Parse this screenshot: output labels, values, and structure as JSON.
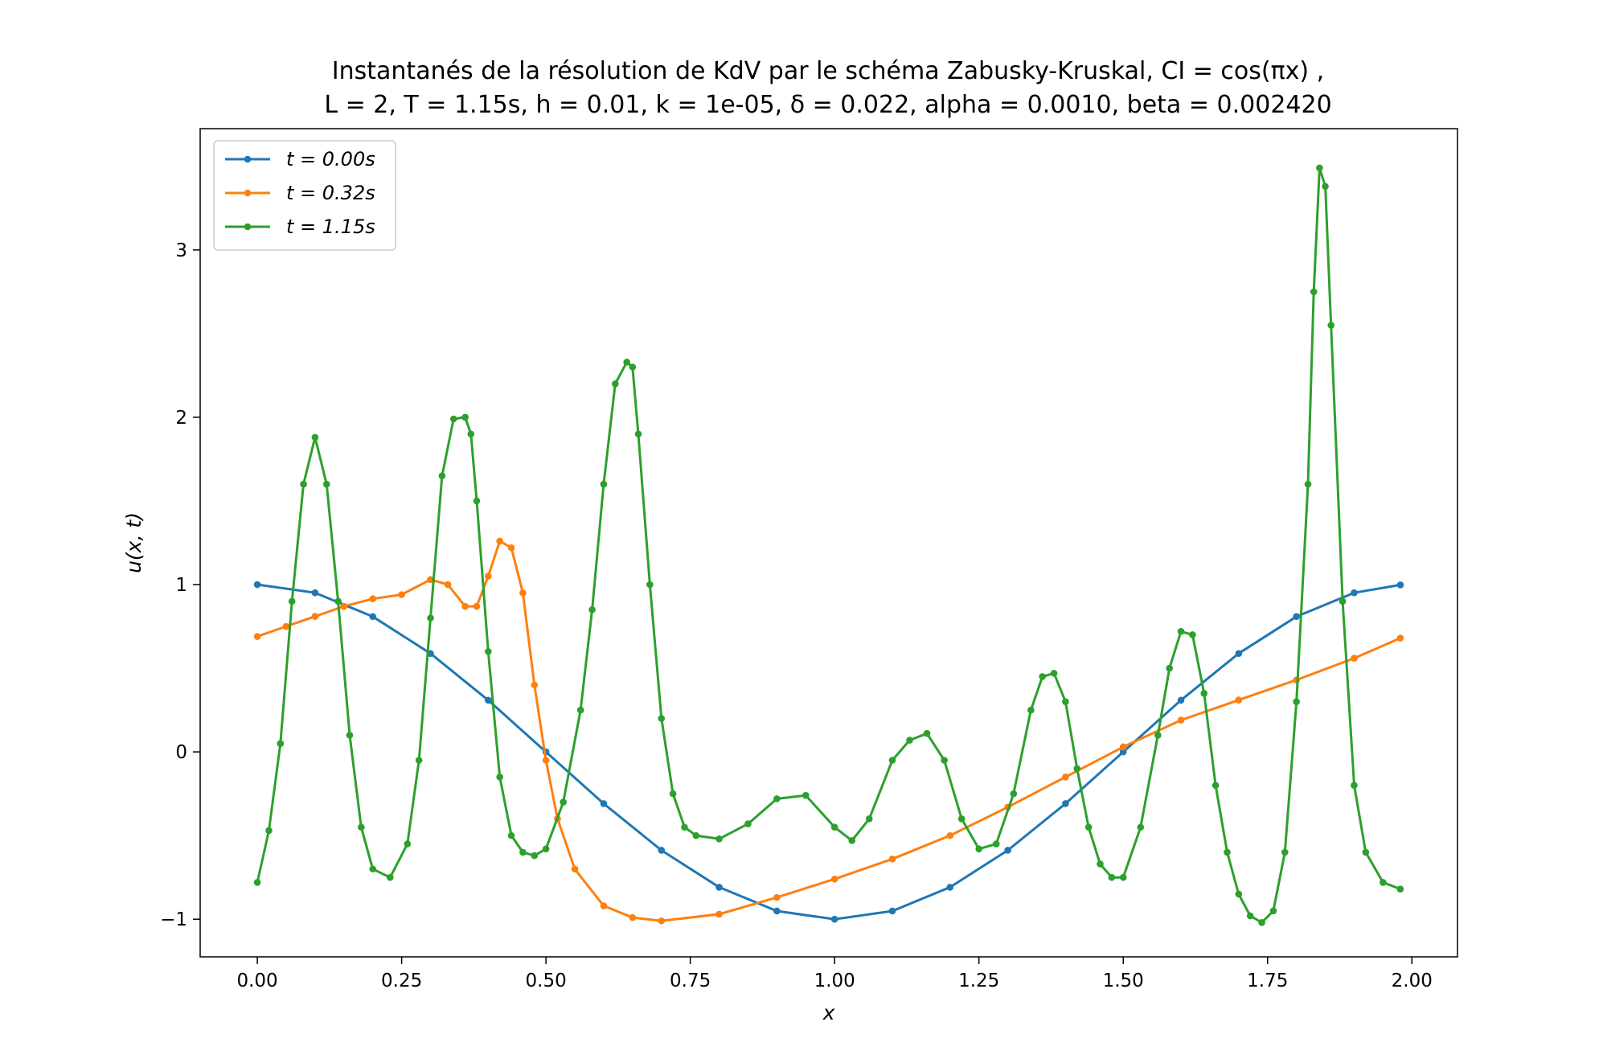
{
  "chart_data": {
    "type": "line",
    "title_line1": "Instantanés de la résolution de KdV par le schéma Zabusky-Kruskal, CI = cos(πx) ,",
    "title_line2": "L = 2, T = 1.15s, h = 0.01, k = 1e-05, δ = 0.022,  alpha = 0.0010, beta = 0.002420",
    "xlabel": "x",
    "ylabel": "u(x, t)",
    "xlim": [
      -0.099,
      2.079
    ],
    "ylim": [
      -1.225,
      3.725
    ],
    "xticks": [
      0.0,
      0.25,
      0.5,
      0.75,
      1.0,
      1.25,
      1.5,
      1.75,
      2.0
    ],
    "xtick_labels": [
      "0.00",
      "0.25",
      "0.50",
      "0.75",
      "1.00",
      "1.25",
      "1.50",
      "1.75",
      "2.00"
    ],
    "yticks": [
      -1,
      0,
      1,
      2,
      3
    ],
    "ytick_labels": [
      "−1",
      "0",
      "1",
      "2",
      "3"
    ],
    "grid": false,
    "legend_position": "top-left",
    "series": [
      {
        "name": "t = 0.00s",
        "color": "#1f77b4",
        "x": [
          0.0,
          0.1,
          0.2,
          0.3,
          0.4,
          0.5,
          0.6,
          0.7,
          0.8,
          0.9,
          1.0,
          1.1,
          1.2,
          1.3,
          1.4,
          1.5,
          1.6,
          1.7,
          1.8,
          1.9,
          1.98
        ],
        "y": [
          1.0,
          0.951,
          0.809,
          0.588,
          0.309,
          0.0,
          -0.309,
          -0.588,
          -0.809,
          -0.951,
          -1.0,
          -0.951,
          -0.809,
          -0.588,
          -0.309,
          0.0,
          0.309,
          0.588,
          0.809,
          0.951,
          0.998
        ]
      },
      {
        "name": "t = 0.32s",
        "color": "#ff7f0e",
        "x": [
          0.0,
          0.05,
          0.1,
          0.15,
          0.2,
          0.25,
          0.3,
          0.33,
          0.36,
          0.38,
          0.4,
          0.42,
          0.44,
          0.46,
          0.48,
          0.5,
          0.52,
          0.55,
          0.6,
          0.65,
          0.7,
          0.8,
          0.9,
          1.0,
          1.1,
          1.2,
          1.3,
          1.4,
          1.5,
          1.6,
          1.7,
          1.8,
          1.9,
          1.98
        ],
        "y": [
          0.69,
          0.75,
          0.81,
          0.87,
          0.915,
          0.94,
          1.03,
          1.0,
          0.87,
          0.87,
          1.05,
          1.26,
          1.22,
          0.95,
          0.4,
          -0.05,
          -0.4,
          -0.7,
          -0.92,
          -0.99,
          -1.01,
          -0.97,
          -0.87,
          -0.76,
          -0.64,
          -0.5,
          -0.33,
          -0.15,
          0.03,
          0.19,
          0.31,
          0.43,
          0.56,
          0.68
        ]
      },
      {
        "name": "t = 1.15s",
        "color": "#2ca02c",
        "x": [
          0.0,
          0.02,
          0.04,
          0.06,
          0.08,
          0.1,
          0.12,
          0.14,
          0.16,
          0.18,
          0.2,
          0.23,
          0.26,
          0.28,
          0.3,
          0.32,
          0.34,
          0.36,
          0.37,
          0.38,
          0.4,
          0.42,
          0.44,
          0.46,
          0.48,
          0.5,
          0.53,
          0.56,
          0.58,
          0.6,
          0.62,
          0.64,
          0.65,
          0.66,
          0.68,
          0.7,
          0.72,
          0.74,
          0.76,
          0.8,
          0.85,
          0.9,
          0.95,
          1.0,
          1.03,
          1.06,
          1.1,
          1.13,
          1.16,
          1.19,
          1.22,
          1.25,
          1.28,
          1.31,
          1.34,
          1.36,
          1.38,
          1.4,
          1.42,
          1.44,
          1.46,
          1.48,
          1.5,
          1.53,
          1.56,
          1.58,
          1.6,
          1.62,
          1.64,
          1.66,
          1.68,
          1.7,
          1.72,
          1.74,
          1.76,
          1.78,
          1.8,
          1.82,
          1.83,
          1.84,
          1.85,
          1.86,
          1.88,
          1.9,
          1.92,
          1.95,
          1.98
        ],
        "y": [
          -0.78,
          -0.47,
          0.05,
          0.9,
          1.6,
          1.88,
          1.6,
          0.9,
          0.1,
          -0.45,
          -0.7,
          -0.75,
          -0.55,
          -0.05,
          0.8,
          1.65,
          1.99,
          2.0,
          1.9,
          1.5,
          0.6,
          -0.15,
          -0.5,
          -0.6,
          -0.62,
          -0.58,
          -0.3,
          0.25,
          0.85,
          1.6,
          2.2,
          2.33,
          2.3,
          1.9,
          1.0,
          0.2,
          -0.25,
          -0.45,
          -0.5,
          -0.52,
          -0.43,
          -0.28,
          -0.26,
          -0.45,
          -0.53,
          -0.4,
          -0.05,
          0.07,
          0.11,
          -0.05,
          -0.4,
          -0.58,
          -0.55,
          -0.25,
          0.25,
          0.45,
          0.47,
          0.3,
          -0.1,
          -0.45,
          -0.67,
          -0.75,
          -0.75,
          -0.45,
          0.1,
          0.5,
          0.72,
          0.7,
          0.35,
          -0.2,
          -0.6,
          -0.85,
          -0.98,
          -1.02,
          -0.95,
          -0.6,
          0.3,
          1.6,
          2.75,
          3.49,
          3.38,
          2.55,
          0.9,
          -0.2,
          -0.6,
          -0.78,
          -0.82
        ]
      }
    ]
  }
}
